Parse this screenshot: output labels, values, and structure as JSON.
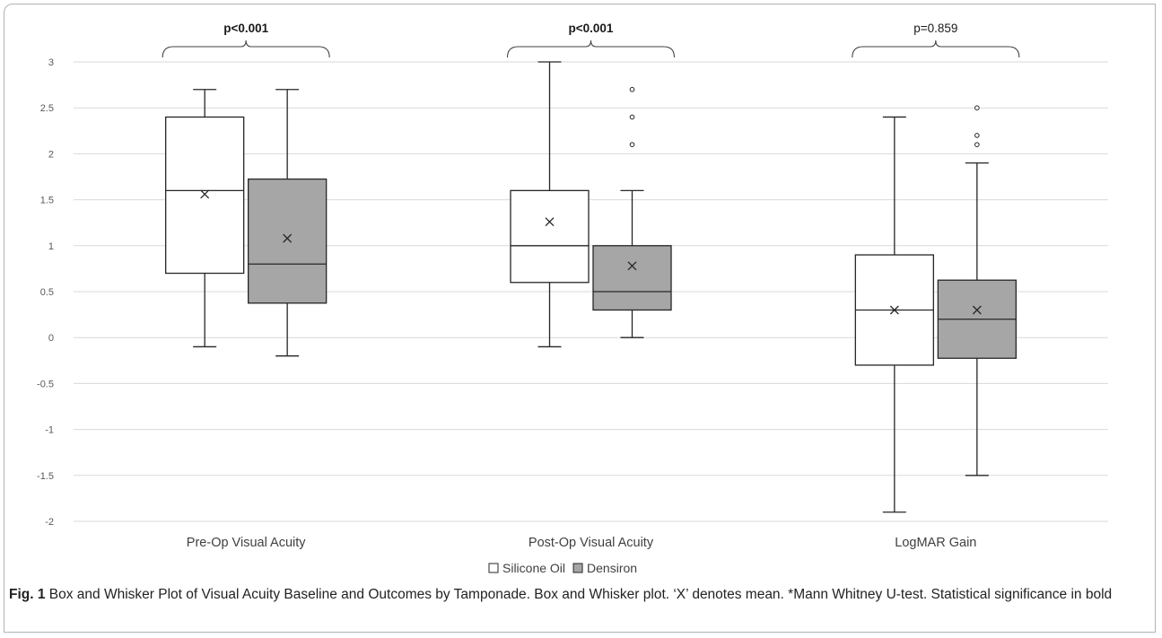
{
  "chart_data": {
    "type": "box",
    "categories": [
      "Pre-Op Visual Acuity",
      "Post-Op Visual Acuity",
      "LogMAR Gain"
    ],
    "ylim": [
      -2,
      3
    ],
    "yticks": [
      "3",
      "2.5",
      "2",
      "1.5",
      "1",
      "0.5",
      "0",
      "-0.5",
      "-1",
      "-1.5",
      "-2"
    ],
    "grid": true,
    "legend_position": "bottom-center",
    "series": [
      {
        "name": "Silicone Oil",
        "color": "#ffffff",
        "boxes": [
          {
            "min": -0.1,
            "q1": 0.7,
            "median": 1.6,
            "q3": 2.4,
            "max": 2.7,
            "mean": 1.56,
            "outliers": []
          },
          {
            "min": -0.1,
            "q1": 0.6,
            "median": 1.0,
            "q3": 1.6,
            "max": 3.0,
            "mean": 1.26,
            "outliers": []
          },
          {
            "min": -1.9,
            "q1": -0.3,
            "median": 0.3,
            "q3": 0.9,
            "max": 2.4,
            "mean": 0.3,
            "outliers": []
          }
        ]
      },
      {
        "name": "Densiron",
        "color": "#a6a6a6",
        "boxes": [
          {
            "min": -0.2,
            "q1": 0.375,
            "median": 0.8,
            "q3": 1.725,
            "max": 2.7,
            "mean": 1.08,
            "outliers": []
          },
          {
            "min": 0.0,
            "q1": 0.3,
            "median": 0.5,
            "q3": 1.0,
            "max": 1.6,
            "mean": 0.78,
            "outliers": [
              2.1,
              2.4,
              2.7
            ]
          },
          {
            "min": -1.5,
            "q1": -0.225,
            "median": 0.2,
            "q3": 0.625,
            "max": 1.9,
            "mean": 0.3,
            "outliers": [
              2.1,
              2.2,
              2.5
            ]
          }
        ]
      }
    ],
    "annotations": [
      {
        "group": 0,
        "text": "p<0.001",
        "bold": true
      },
      {
        "group": 1,
        "text": "p<0.001",
        "bold": true
      },
      {
        "group": 2,
        "text": "p=0.859",
        "bold": false
      }
    ]
  },
  "caption": {
    "label": "Fig. 1",
    "text": " Box and Whisker Plot of Visual Acuity Baseline and Outcomes by Tamponade. Box and Whisker plot. ‘X’ denotes mean. *Mann Whitney U-test. Statistical significance in bold"
  }
}
